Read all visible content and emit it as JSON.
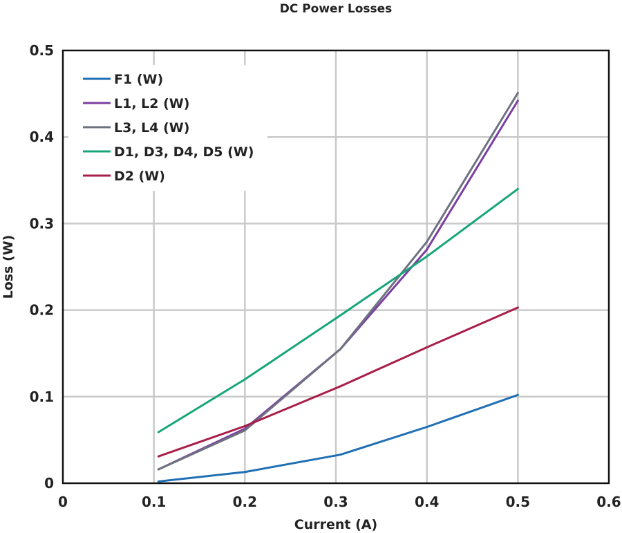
{
  "chart_data": {
    "type": "line",
    "title": "DC Power Losses",
    "xlabel": "Current (A)",
    "ylabel": "Loss (W)",
    "xlim": [
      0,
      0.6
    ],
    "ylim": [
      0,
      0.5
    ],
    "xticks": [
      "0",
      "0.1",
      "0.2",
      "0.3",
      "0.4",
      "0.5",
      "0.6"
    ],
    "yticks": [
      "0",
      "0.1",
      "0.2",
      "0.3",
      "0.4",
      "0.5"
    ],
    "grid": true,
    "legend_position": "top-left",
    "series": [
      {
        "name": "F1 (W)",
        "color": "#1f6fb4",
        "x": [
          0.105,
          0.2,
          0.305,
          0.4,
          0.5
        ],
        "y": [
          0.002,
          0.013,
          0.033,
          0.065,
          0.102
        ]
      },
      {
        "name": "L1, L2 (W)",
        "color": "#7b3fa0",
        "x": [
          0.105,
          0.2,
          0.305,
          0.4,
          0.5
        ],
        "y": [
          0.016,
          0.063,
          0.155,
          0.27,
          0.442
        ]
      },
      {
        "name": "L3, L4 (W)",
        "color": "#6e7280",
        "x": [
          0.105,
          0.2,
          0.305,
          0.4,
          0.5
        ],
        "y": [
          0.016,
          0.061,
          0.155,
          0.279,
          0.451
        ]
      },
      {
        "name": "D1, D3, D4, D5 (W)",
        "color": "#17a57a",
        "x": [
          0.105,
          0.2,
          0.305,
          0.4,
          0.5
        ],
        "y": [
          0.059,
          0.12,
          0.194,
          0.262,
          0.34
        ]
      },
      {
        "name": "D2 (W)",
        "color": "#a81e48",
        "x": [
          0.105,
          0.2,
          0.305,
          0.4,
          0.5
        ],
        "y": [
          0.031,
          0.066,
          0.112,
          0.157,
          0.203
        ]
      }
    ]
  }
}
